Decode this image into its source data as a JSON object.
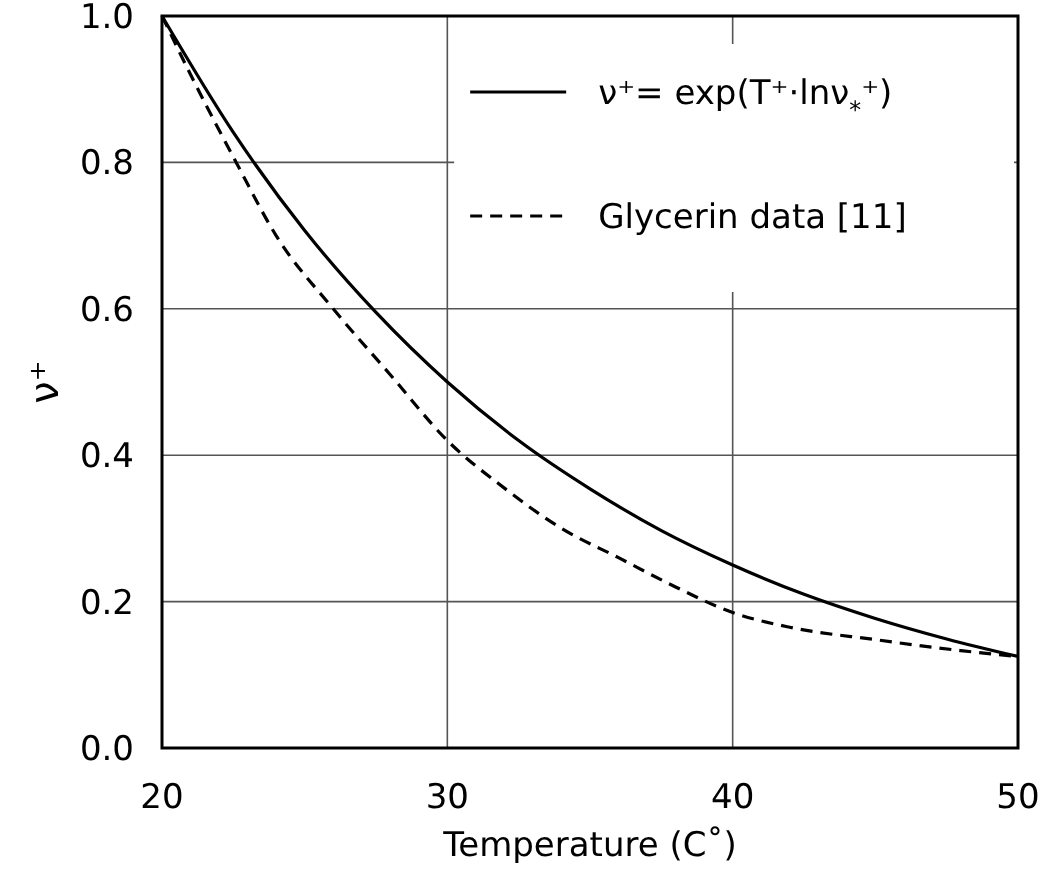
{
  "chart_data": {
    "type": "line",
    "xlabel": "Temperature (C˚)",
    "ylabel": "ν⁺",
    "xlim": [
      20,
      50
    ],
    "ylim": [
      0,
      1
    ],
    "xticks": [
      20,
      30,
      40,
      50
    ],
    "yticks": [
      {
        "value": 0,
        "label": "0.0"
      },
      0.2,
      0.4,
      0.6,
      0.8,
      {
        "value": 1,
        "label": "1.0"
      }
    ],
    "grid": true,
    "legend": "top right",
    "marker": "none",
    "series": [
      {
        "name": "ν⁺= exp(T⁺·lnν$_{*}$⁺)",
        "color": "#000000",
        "line_style": "solid",
        "x": [
          20,
          22.5,
          25,
          27.5,
          30,
          32.5,
          35,
          37.5,
          40,
          42.5,
          45,
          47.5,
          50
        ],
        "values": [
          1,
          0.841,
          0.707,
          0.595,
          0.5,
          0.42,
          0.354,
          0.297,
          0.25,
          0.21,
          0.177,
          0.149,
          0.125
        ]
      },
      {
        "name": "Glycerin data [11]",
        "color": "#000000",
        "line_style": "dashed",
        "x": [
          20,
          21,
          22.6,
          24,
          26,
          28,
          30,
          32,
          34,
          36,
          38,
          40,
          42,
          45,
          48,
          50
        ],
        "values": [
          1,
          0.92,
          0.8,
          0.7,
          0.6,
          0.51,
          0.42,
          0.355,
          0.3,
          0.26,
          0.22,
          0.185,
          0.165,
          0.148,
          0.133,
          0.125
        ]
      }
    ]
  }
}
